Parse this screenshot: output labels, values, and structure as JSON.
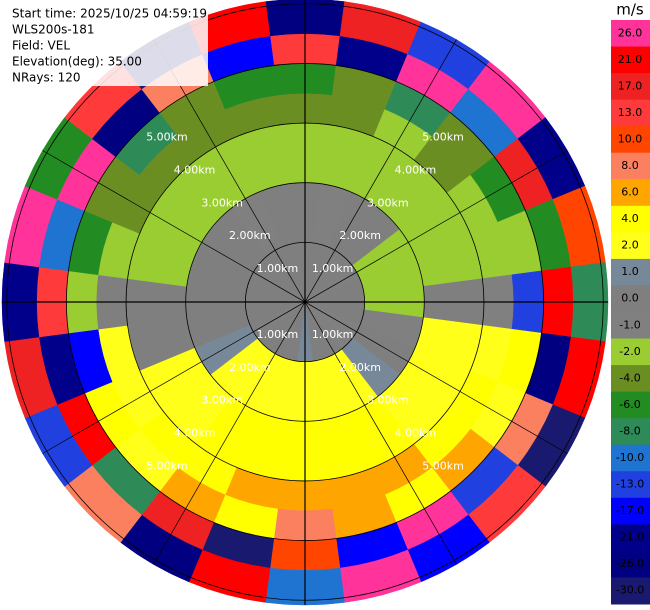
{
  "chart_data": {
    "type": "ppi",
    "info": [
      "Start time: 2025/10/25 04:59:19",
      "WLS200s-181",
      "Field: VEL",
      "Elevation(deg): 35.00",
      "NRays: 120"
    ],
    "rlim": [
      0,
      5.08
    ],
    "rticks": [
      {
        "value": 1,
        "label": "1.00km"
      },
      {
        "value": 2,
        "label": "2.00km"
      },
      {
        "value": 3,
        "label": "3.00km"
      },
      {
        "value": 4,
        "label": "4.00km"
      },
      {
        "value": 5,
        "label": "5.00km"
      }
    ],
    "field": {
      "range_edges": [
        0,
        1,
        2,
        3,
        3.5,
        4,
        4.5,
        5.08
      ],
      "sectors": 24,
      "values": [
        [
          0,
          0,
          0,
          0,
          -1,
          0,
          0,
          0,
          -1,
          -1,
          0,
          0,
          1,
          0,
          0,
          0,
          -1,
          0,
          0,
          0,
          0,
          0,
          0,
          0
        ],
        [
          0,
          -1,
          0,
          0,
          -2,
          -2,
          -2,
          -1,
          0,
          1,
          2,
          2,
          2,
          2,
          2,
          2,
          1,
          0,
          0,
          0,
          0,
          0,
          -1,
          0
        ],
        [
          -2,
          -2,
          -2,
          -2,
          -2,
          -2,
          0,
          2,
          2,
          2,
          4,
          4,
          4,
          4,
          4,
          2,
          2,
          0,
          0,
          -2,
          -2,
          -2,
          -2,
          -2
        ],
        [
          -4,
          -4,
          -2,
          -4,
          -2,
          -2,
          -1,
          2,
          4,
          4,
          6,
          6,
          6,
          6,
          4,
          4,
          2,
          2,
          0,
          -2,
          -4,
          -4,
          -4,
          -4
        ],
        [
          -6,
          -4,
          -8,
          -4,
          -6,
          -2,
          -13,
          4,
          2,
          6,
          4,
          6,
          8,
          4,
          6,
          2,
          4,
          -17,
          -2,
          -6,
          -4,
          -8,
          -4,
          -6
        ],
        [
          13,
          -21,
          26,
          -10,
          17,
          -6,
          21,
          -26,
          8,
          -13,
          26,
          -17,
          10,
          -30,
          17,
          -8,
          21,
          -21,
          13,
          -10,
          26,
          -26,
          8,
          -17
        ],
        [
          -26,
          17,
          -13,
          26,
          -21,
          10,
          -8,
          21,
          -30,
          13,
          -17,
          26,
          -10,
          21,
          -26,
          8,
          -13,
          17,
          -21,
          26,
          -6,
          13,
          -30,
          21
        ]
      ]
    },
    "colorbar": {
      "label": "m/s",
      "ticks": [
        {
          "value": 26,
          "label": "26.0"
        },
        {
          "value": 21,
          "label": "21.0"
        },
        {
          "value": 17,
          "label": "17.0"
        },
        {
          "value": 13,
          "label": "13.0"
        },
        {
          "value": 10,
          "label": "10.0"
        },
        {
          "value": 8,
          "label": "8.0"
        },
        {
          "value": 6,
          "label": "6.0"
        },
        {
          "value": 4,
          "label": "4.0"
        },
        {
          "value": 2,
          "label": "2.0"
        },
        {
          "value": 1,
          "label": "1.0"
        },
        {
          "value": 0,
          "label": "0.0"
        },
        {
          "value": -1,
          "label": "-1.0"
        },
        {
          "value": -2,
          "label": "-2.0"
        },
        {
          "value": -4,
          "label": "-4.0"
        },
        {
          "value": -6,
          "label": "-6.0"
        },
        {
          "value": -8,
          "label": "-8.0"
        },
        {
          "value": -10,
          "label": "-10.0"
        },
        {
          "value": -13,
          "label": "-13.0"
        },
        {
          "value": -17,
          "label": "-17.0"
        },
        {
          "value": -21,
          "label": "-21.0"
        },
        {
          "value": -26,
          "label": "-26.0"
        },
        {
          "value": -30,
          "label": "-30.0"
        }
      ],
      "colors": [
        "#ff3399",
        "#ff0000",
        "#ee2222",
        "#ff3a3a",
        "#ff4500",
        "#fa8060",
        "#ffa500",
        "#ffff00",
        "#ffff1a",
        "#778899",
        "#7f7f7f",
        "#808080",
        "#9acd32",
        "#6b8e23",
        "#228b22",
        "#2e8b57",
        "#1e74d0",
        "#2040e0",
        "#0000ff",
        "#00008b",
        "#000080",
        "#191970"
      ]
    }
  }
}
